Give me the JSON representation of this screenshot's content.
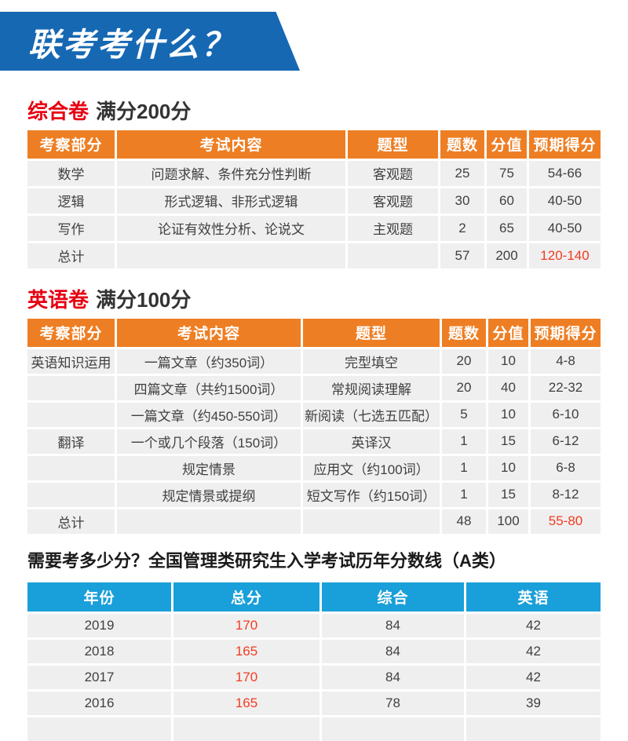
{
  "banner": {
    "title": "联考考什么？"
  },
  "colors": {
    "banner_blue": "#1668b3",
    "table_header_orange": "#ee7e23",
    "table_header_blue": "#199fd9",
    "section_title_red": "#e60012",
    "highlight_number_red": "#f23b20",
    "row_background_gray": "#efefef"
  },
  "sections": [
    {
      "title_red": "综合卷",
      "title_black": "满分200分",
      "table": {
        "headers": [
          "考察部分",
          "考试内容",
          "题型",
          "题数",
          "分值",
          "预期得分"
        ],
        "rows": [
          {
            "cells": [
              "数学",
              "问题求解、条件充分性判断",
              "客观题",
              "25",
              "75",
              "54-66"
            ],
            "red": []
          },
          {
            "cells": [
              "逻辑",
              "形式逻辑、非形式逻辑",
              "客观题",
              "30",
              "60",
              "40-50"
            ],
            "red": []
          },
          {
            "cells": [
              "写作",
              "论证有效性分析、论说文",
              "主观题",
              "2",
              "65",
              "40-50"
            ],
            "red": []
          },
          {
            "cells": [
              "总计",
              "",
              "",
              "57",
              "200",
              "120-140"
            ],
            "red": [
              5
            ]
          }
        ]
      }
    },
    {
      "title_red": "英语卷",
      "title_black": "满分100分",
      "table": {
        "headers": [
          "考察部分",
          "考试内容",
          "题型",
          "题数",
          "分值",
          "预期得分"
        ],
        "rows": [
          {
            "cells": [
              "英语知识运用",
              "一篇文章（约350词）",
              "完型填空",
              "20",
              "10",
              "4-8"
            ],
            "red": []
          },
          {
            "cells": [
              "",
              "四篇文章（共约1500词）",
              "常规阅读理解",
              "20",
              "40",
              "22-32"
            ],
            "red": []
          },
          {
            "cells": [
              "",
              "一篇文章（约450-550词）",
              "新阅读（七选五匹配）",
              "5",
              "10",
              "6-10"
            ],
            "red": []
          },
          {
            "cells": [
              "翻译",
              "一个或几个段落（150词）",
              "英译汉",
              "1",
              "15",
              "6-12"
            ],
            "red": []
          },
          {
            "cells": [
              "",
              "规定情景",
              "应用文（约100词）",
              "1",
              "10",
              "6-8"
            ],
            "red": []
          },
          {
            "cells": [
              "",
              "规定情景或提纲",
              "短文写作（约150词）",
              "1",
              "15",
              "8-12"
            ],
            "red": []
          },
          {
            "cells": [
              "总计",
              "",
              "",
              "48",
              "100",
              "55-80"
            ],
            "red": [
              5
            ]
          }
        ]
      }
    }
  ],
  "score_section": {
    "title": "需要考多少分？全国管理类研究生入学考试历年分数线（A类）",
    "table": {
      "headers": [
        "年份",
        "总分",
        "综合",
        "英语"
      ],
      "rows": [
        {
          "cells": [
            "2019",
            "170",
            "84",
            "42"
          ],
          "red": [
            1
          ]
        },
        {
          "cells": [
            "2018",
            "165",
            "84",
            "42"
          ],
          "red": [
            1
          ]
        },
        {
          "cells": [
            "2017",
            "170",
            "84",
            "42"
          ],
          "red": [
            1
          ]
        },
        {
          "cells": [
            "2016",
            "165",
            "78",
            "39"
          ],
          "red": [
            1
          ]
        },
        {
          "cells": [
            "",
            "",
            "",
            ""
          ],
          "red": []
        }
      ]
    }
  }
}
